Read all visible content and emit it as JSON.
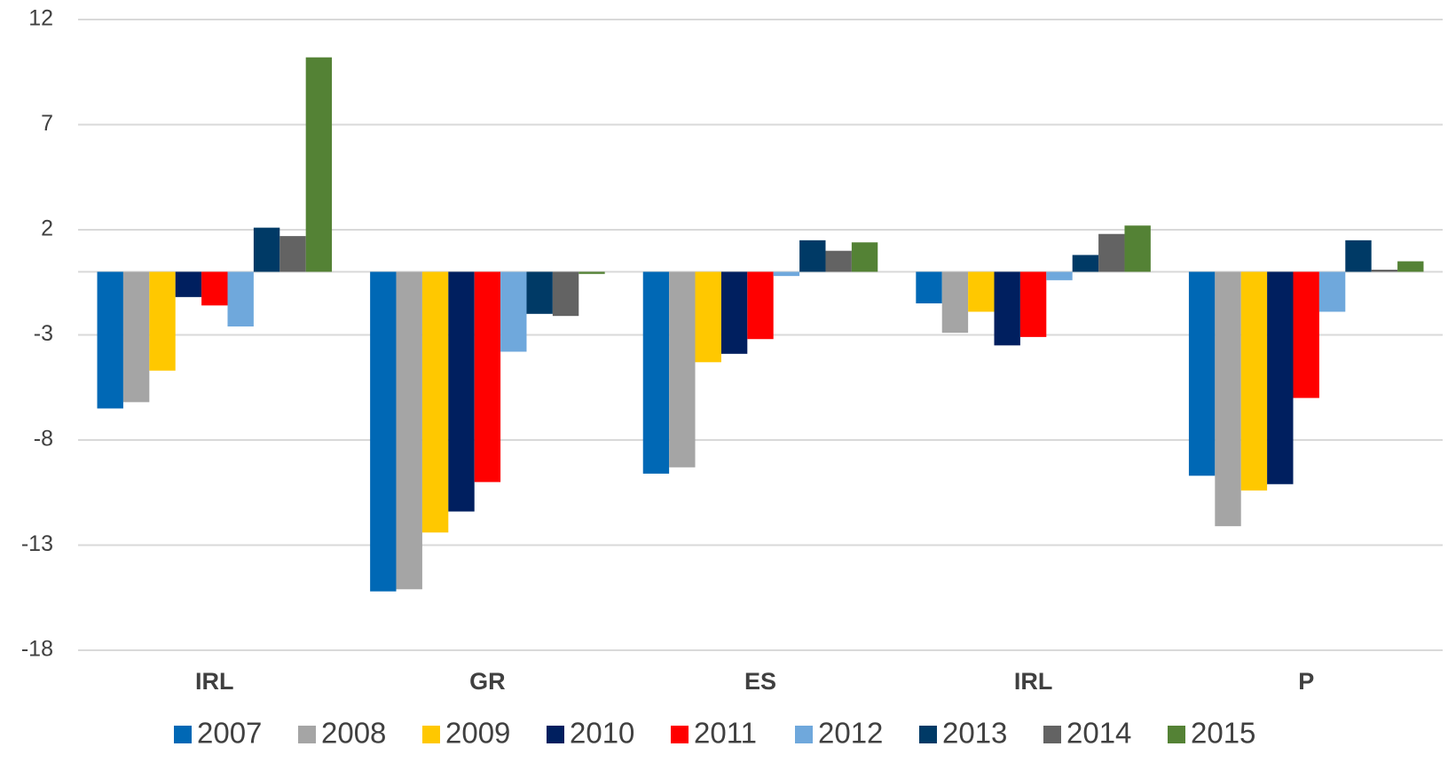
{
  "chart_data": {
    "type": "bar",
    "categories": [
      "IRL",
      "GR",
      "ES",
      "IRL",
      "P"
    ],
    "series": [
      {
        "name": "2007",
        "color": "#0068b5",
        "values": [
          -6.5,
          -15.2,
          -9.6,
          -1.5,
          -9.7
        ]
      },
      {
        "name": "2008",
        "color": "#a5a5a5",
        "values": [
          -6.2,
          -15.1,
          -9.3,
          -2.9,
          -12.1
        ]
      },
      {
        "name": "2009",
        "color": "#ffc800",
        "values": [
          -4.7,
          -12.4,
          -4.3,
          -1.9,
          -10.4
        ]
      },
      {
        "name": "2010",
        "color": "#001f5f",
        "values": [
          -1.2,
          -11.4,
          -3.9,
          -3.5,
          -10.1
        ]
      },
      {
        "name": "2011",
        "color": "#ff0000",
        "values": [
          -1.6,
          -10.0,
          -3.2,
          -3.1,
          -6.0
        ]
      },
      {
        "name": "2012",
        "color": "#6fa8dc",
        "values": [
          -2.6,
          -3.8,
          -0.2,
          -0.4,
          -1.9
        ]
      },
      {
        "name": "2013",
        "color": "#003a66",
        "values": [
          2.1,
          -2.0,
          1.5,
          0.8,
          1.5
        ]
      },
      {
        "name": "2014",
        "color": "#636363",
        "values": [
          1.7,
          -2.1,
          1.0,
          1.8,
          0.1
        ]
      },
      {
        "name": "2015",
        "color": "#548235",
        "values": [
          10.2,
          -0.1,
          1.4,
          2.2,
          0.5
        ]
      }
    ],
    "ylim": [
      -18,
      12
    ],
    "yticks": [
      -18,
      -13,
      -8,
      -3,
      2,
      7,
      12
    ],
    "grid": true
  }
}
